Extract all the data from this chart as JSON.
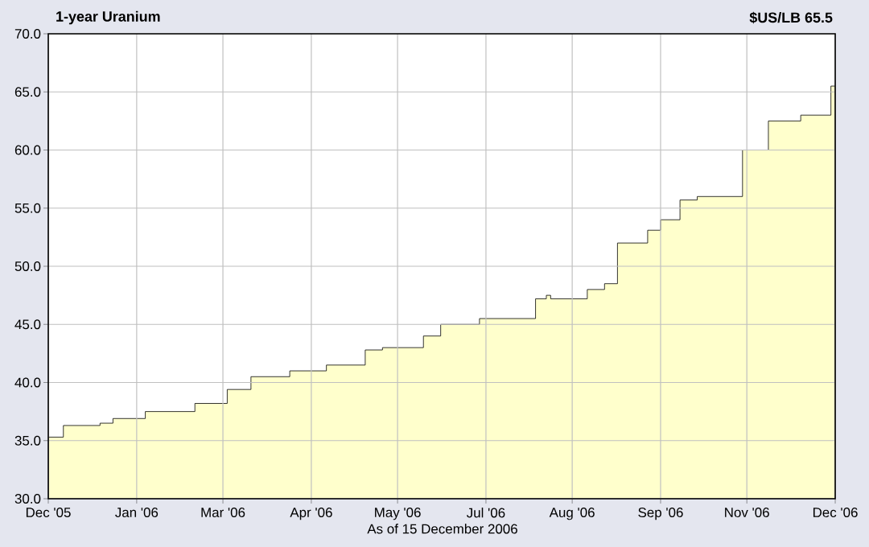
{
  "chart_data": {
    "type": "area",
    "title": "1-year Uranium",
    "subtitle": "$US/LB 65.5",
    "annotations": [
      "As of 15 December 2006"
    ],
    "x": [
      "2005-12-15",
      "2005-12-22",
      "2006-01-08",
      "2006-01-14",
      "2006-01-29",
      "2006-02-21",
      "2006-03-08",
      "2006-03-19",
      "2006-04-06",
      "2006-04-23",
      "2006-05-11",
      "2006-05-19",
      "2006-06-07",
      "2006-06-15",
      "2006-07-03",
      "2006-07-29",
      "2006-08-03",
      "2006-08-05",
      "2006-08-22",
      "2006-08-30",
      "2006-09-05",
      "2006-09-19",
      "2006-09-25",
      "2006-10-04",
      "2006-10-12",
      "2006-11-02",
      "2006-11-14",
      "2006-11-29",
      "2006-12-13",
      "2006-12-15"
    ],
    "series": [
      {
        "color": "#ffffcc",
        "values": [
          35.3,
          36.3,
          36.5,
          36.9,
          37.5,
          38.2,
          39.4,
          40.5,
          41.0,
          41.5,
          42.8,
          43.0,
          44.0,
          45.0,
          45.5,
          47.2,
          47.5,
          47.2,
          48.0,
          48.5,
          52.0,
          53.1,
          54.0,
          55.7,
          56.0,
          60.0,
          62.5,
          63.0,
          65.5,
          65.5
        ]
      }
    ],
    "xlim": [
      "2005-12-15",
      "2006-12-15"
    ],
    "xticks": [
      {
        "value": "2005-12-15",
        "label": "Dec '05"
      },
      {
        "value": "2006-01-25",
        "label": "Jan '06"
      },
      {
        "value": "2006-03-06",
        "label": "Mar '06"
      },
      {
        "value": "2006-04-16",
        "label": "Apr '06"
      },
      {
        "value": "2006-05-26",
        "label": "May '06"
      },
      {
        "value": "2006-07-06",
        "label": "Jul '06"
      },
      {
        "value": "2006-08-15",
        "label": "Aug '06"
      },
      {
        "value": "2006-09-25",
        "label": "Sep '06"
      },
      {
        "value": "2006-11-04",
        "label": "Nov '06"
      },
      {
        "value": "2006-12-15",
        "label": "Dec '06"
      }
    ],
    "ylim": [
      30,
      70
    ],
    "yticks": [
      {
        "value": 30,
        "label": "30.0"
      },
      {
        "value": 35,
        "label": "35.0"
      },
      {
        "value": 40,
        "label": "40.0"
      },
      {
        "value": 45,
        "label": "45.0"
      },
      {
        "value": 50,
        "label": "50.0"
      },
      {
        "value": 55,
        "label": "55.0"
      },
      {
        "value": 60,
        "label": "60.0"
      },
      {
        "value": 65,
        "label": "65.0"
      },
      {
        "value": 70,
        "label": "70.0"
      }
    ],
    "grid": true
  }
}
